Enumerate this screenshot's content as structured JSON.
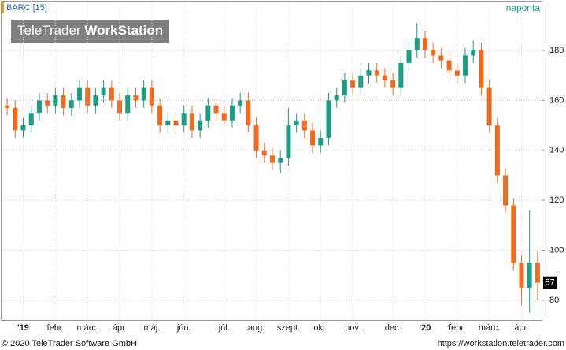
{
  "chart_data": {
    "type": "candlestick",
    "title": "BARC [15]",
    "interval": "naponta",
    "watermark": [
      "TeleTrader",
      "WorkStation"
    ],
    "categories": [
      null,
      null,
      "'19",
      null,
      null,
      null,
      "febr.",
      null,
      null,
      null,
      "márc.",
      null,
      null,
      null,
      "ápr.",
      null,
      null,
      null,
      "máj.",
      null,
      null,
      null,
      "jún.",
      null,
      null,
      null,
      null,
      "júl.",
      null,
      null,
      null,
      "aug.",
      null,
      null,
      null,
      "szept.",
      null,
      null,
      null,
      "okt.",
      null,
      null,
      null,
      "nov.",
      null,
      null,
      null,
      null,
      "dec.",
      null,
      null,
      null,
      "'20",
      null,
      null,
      null,
      "febr.",
      null,
      null,
      null,
      "márc.",
      null,
      null,
      null,
      "ápr.",
      null,
      null
    ],
    "open": [
      158,
      157,
      148,
      150,
      155,
      160,
      158,
      162,
      157,
      160,
      165,
      158,
      162,
      165,
      160,
      155,
      162,
      160,
      165,
      158,
      150,
      152,
      150,
      155,
      148,
      152,
      158,
      155,
      152,
      158,
      160,
      150,
      140,
      138,
      135,
      137,
      150,
      152,
      148,
      142,
      145,
      160,
      162,
      168,
      165,
      170,
      172,
      170,
      168,
      165,
      175,
      180,
      185,
      180,
      178,
      176,
      172,
      170,
      178,
      180,
      165,
      150,
      130,
      118,
      95,
      85,
      95
    ],
    "high": [
      161,
      160,
      153,
      158,
      163,
      163,
      165,
      165,
      163,
      168,
      168,
      165,
      168,
      168,
      163,
      165,
      165,
      168,
      168,
      161,
      155,
      155,
      158,
      158,
      155,
      161,
      161,
      158,
      161,
      163,
      163,
      153,
      143,
      141,
      140,
      157,
      155,
      155,
      151,
      148,
      163,
      165,
      171,
      171,
      173,
      175,
      175,
      173,
      171,
      178,
      183,
      191,
      188,
      183,
      181,
      179,
      175,
      181,
      184,
      183,
      168,
      153,
      133,
      121,
      98,
      116,
      100
    ],
    "low": [
      154,
      145,
      145,
      147,
      152,
      155,
      155,
      154,
      154,
      157,
      155,
      155,
      159,
      157,
      152,
      152,
      157,
      157,
      155,
      147,
      147,
      147,
      147,
      145,
      145,
      149,
      152,
      149,
      149,
      155,
      147,
      137,
      135,
      132,
      131,
      134,
      147,
      145,
      139,
      139,
      142,
      157,
      159,
      162,
      162,
      167,
      167,
      165,
      162,
      162,
      172,
      177,
      177,
      175,
      173,
      169,
      167,
      167,
      175,
      162,
      147,
      127,
      115,
      92,
      78,
      75,
      80
    ],
    "close": [
      157,
      148,
      150,
      155,
      160,
      158,
      162,
      157,
      160,
      165,
      158,
      162,
      165,
      160,
      155,
      162,
      160,
      165,
      158,
      150,
      152,
      150,
      155,
      148,
      152,
      158,
      155,
      152,
      158,
      160,
      150,
      140,
      138,
      135,
      137,
      150,
      152,
      148,
      142,
      145,
      160,
      162,
      168,
      165,
      170,
      172,
      170,
      168,
      165,
      175,
      180,
      185,
      180,
      178,
      176,
      172,
      170,
      178,
      180,
      165,
      150,
      130,
      118,
      95,
      85,
      95,
      87
    ],
    "up_color": "#1a9e82",
    "down_color": "#f26b1d",
    "ylim": [
      72.4,
      193.9
    ],
    "yticks": [
      80,
      100,
      120,
      140,
      160,
      180
    ],
    "grid": true
  },
  "footer": {
    "left": "© 2020 TeleTrader Software GmbH",
    "right": "https://workstation.teletrader.com"
  }
}
